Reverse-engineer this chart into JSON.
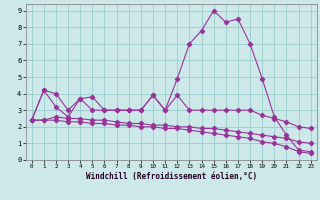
{
  "xlabel": "Windchill (Refroidissement éolien,°C)",
  "bg_color": "#cce8e8",
  "grid_color": "#99cccc",
  "line_color": "#993399",
  "xlim": [
    -0.5,
    23.5
  ],
  "ylim": [
    0,
    9.4
  ],
  "xticks": [
    0,
    1,
    2,
    3,
    4,
    5,
    6,
    7,
    8,
    9,
    10,
    11,
    12,
    13,
    14,
    15,
    16,
    17,
    18,
    19,
    20,
    21,
    22,
    23
  ],
  "yticks": [
    0,
    1,
    2,
    3,
    4,
    5,
    6,
    7,
    8,
    9
  ],
  "series1_x": [
    0,
    1,
    2,
    3,
    4,
    5,
    6,
    7,
    8,
    9,
    10,
    11,
    12,
    13,
    14,
    15,
    16,
    17,
    18,
    19,
    20,
    21,
    22,
    23
  ],
  "series1_y": [
    2.4,
    4.2,
    4.0,
    3.0,
    3.7,
    3.8,
    3.0,
    3.0,
    3.0,
    3.0,
    3.9,
    3.0,
    4.9,
    7.0,
    7.8,
    9.0,
    8.3,
    8.5,
    7.0,
    4.9,
    2.6,
    1.5,
    0.6,
    0.5
  ],
  "series2_x": [
    0,
    1,
    2,
    3,
    4,
    5,
    6,
    7,
    8,
    9,
    10,
    11,
    12,
    13,
    14,
    15,
    16,
    17,
    18,
    19,
    20,
    21,
    22,
    23
  ],
  "series2_y": [
    2.4,
    4.2,
    3.2,
    2.6,
    3.7,
    3.0,
    3.0,
    3.0,
    3.0,
    3.0,
    3.9,
    3.0,
    3.9,
    3.0,
    3.0,
    3.0,
    3.0,
    3.0,
    3.0,
    2.7,
    2.5,
    2.3,
    2.0,
    1.9
  ],
  "series3_x": [
    0,
    1,
    2,
    3,
    4,
    5,
    6,
    7,
    8,
    9,
    10,
    11,
    12,
    13,
    14,
    15,
    16,
    17,
    18,
    19,
    20,
    21,
    22,
    23
  ],
  "series3_y": [
    2.4,
    2.4,
    2.6,
    2.5,
    2.5,
    2.4,
    2.4,
    2.3,
    2.2,
    2.2,
    2.1,
    2.1,
    2.0,
    2.0,
    1.9,
    1.9,
    1.8,
    1.7,
    1.6,
    1.5,
    1.4,
    1.3,
    1.1,
    1.0
  ],
  "series4_x": [
    0,
    1,
    2,
    3,
    4,
    5,
    6,
    7,
    8,
    9,
    10,
    11,
    12,
    13,
    14,
    15,
    16,
    17,
    18,
    19,
    20,
    21,
    22,
    23
  ],
  "series4_y": [
    2.4,
    2.4,
    2.4,
    2.3,
    2.3,
    2.2,
    2.2,
    2.1,
    2.1,
    2.0,
    2.0,
    1.9,
    1.9,
    1.8,
    1.7,
    1.6,
    1.5,
    1.4,
    1.3,
    1.1,
    1.0,
    0.8,
    0.5,
    0.4
  ]
}
